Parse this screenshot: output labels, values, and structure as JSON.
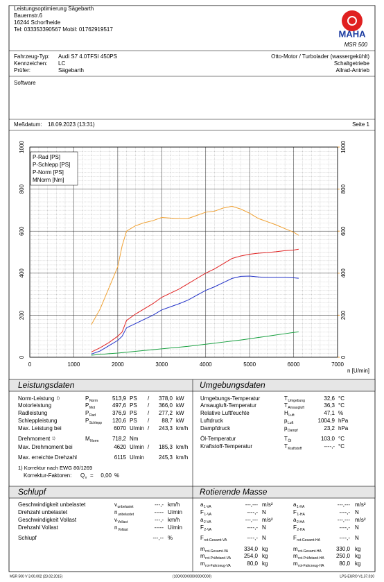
{
  "header": {
    "company": [
      "Leistungsoptimierung Sägebarth",
      "Bauernstr.6",
      "16244 Schorfheide",
      "Tel: 033353390567 Mobil: 01762919517"
    ],
    "logo_text": "MAHA",
    "model": "MSR 500"
  },
  "vehicle": {
    "rows": [
      {
        "label": "Fahrzeug-Typ:",
        "value": "Audi S7 4.0TFSI 450PS"
      },
      {
        "label": "Kennzeichen:",
        "value": "LC"
      },
      {
        "label": "Prüfer:",
        "value": "Sägebarth"
      }
    ],
    "right": [
      "Otto-Motor / Turbolader (wassergekühlt)",
      "Schaltgetriebe",
      "Allrad-Antrieb"
    ]
  },
  "software": {
    "label": "Software"
  },
  "date": {
    "label": "Meßdatum:",
    "value": "18.09.2023 (13:31)",
    "page": "Seite 1"
  },
  "chart_data": {
    "type": "line",
    "x_label": "n [U/min]",
    "x": [
      1400,
      1600,
      1800,
      2000,
      2100,
      2200,
      2400,
      2600,
      2800,
      3000,
      3200,
      3400,
      3600,
      3800,
      4000,
      4200,
      4400,
      4600,
      4800,
      5000,
      5200,
      5400,
      5600,
      5800,
      6000,
      6115
    ],
    "series": [
      {
        "name": "P-Rad [PS]",
        "color": "#2030c8",
        "values": [
          15,
          30,
          55,
          80,
          100,
          140,
          160,
          180,
          200,
          225,
          240,
          255,
          272,
          295,
          318,
          335,
          355,
          375,
          385,
          386,
          382,
          380,
          380,
          380,
          378,
          376
        ]
      },
      {
        "name": "P-Schlepp [PS]",
        "color": "#18a040",
        "values": [
          10,
          13,
          17,
          20,
          22,
          24,
          28,
          32,
          36,
          40,
          44,
          48,
          52,
          57,
          62,
          67,
          72,
          77,
          82,
          88,
          94,
          100,
          106,
          112,
          118,
          121
        ]
      },
      {
        "name": "P-Norm [PS]",
        "color": "#e02020",
        "values": [
          25,
          45,
          70,
          100,
          120,
          175,
          205,
          230,
          255,
          285,
          305,
          325,
          350,
          375,
          400,
          420,
          445,
          470,
          482,
          490,
          495,
          498,
          502,
          507,
          510,
          514
        ]
      },
      {
        "name": "MNorm [Nm]",
        "color": "#f0a030",
        "axis": "y2",
        "values": [
          155,
          230,
          330,
          430,
          530,
          600,
          625,
          640,
          650,
          665,
          662,
          660,
          660,
          675,
          690,
          695,
          710,
          718,
          705,
          685,
          660,
          645,
          630,
          612,
          595,
          580
        ]
      }
    ],
    "xlim": [
      0,
      7000
    ],
    "xticks": [
      0,
      1000,
      2000,
      3000,
      4000,
      5000,
      6000,
      7000
    ],
    "ylim": [
      0,
      1000
    ],
    "yticks": [
      0,
      200,
      400,
      600,
      800,
      1000
    ],
    "y2lim": [
      0,
      1000
    ],
    "y2ticks": [
      0,
      200,
      400,
      600,
      800,
      1000
    ],
    "y2color": "#f0a030",
    "grid": true,
    "legend": "top-left"
  },
  "power": {
    "title": "Leistungsdaten",
    "rows": [
      {
        "label": "Norm-Leistung",
        "note": "1)",
        "sym": "P",
        "sub": "Norm",
        "v1": "513,9",
        "u1": "PS",
        "sep": "/",
        "v2": "378,0",
        "u2": "kW",
        "color": "#e02020"
      },
      {
        "label": "Motorleistung",
        "sym": "P",
        "sub": "Mot",
        "v1": "497,6",
        "u1": "PS",
        "sep": "/",
        "v2": "366,0",
        "u2": "kW",
        "color": "#e02020"
      },
      {
        "label": "Radleistung",
        "sym": "P",
        "sub": "Rad",
        "v1": "376,9",
        "u1": "PS",
        "sep": "/",
        "v2": "277,2",
        "u2": "kW",
        "color": "#2030c8"
      },
      {
        "label": "Schleppleistung",
        "sym": "P",
        "sub": "Schlepp",
        "v1": "120,6",
        "u1": "PS",
        "sep": "/",
        "v2": "88,7",
        "u2": "kW",
        "color": "#18a040"
      },
      {
        "label": "Max. Leistung bei",
        "v1": "6070",
        "u1": "U/min",
        "sep": "/",
        "v2": "243,3",
        "u2": "km/h",
        "color": "#000000"
      },
      {
        "label": "Drehmoment",
        "note": "1)",
        "sym": "M",
        "sub": "Norm",
        "v1": "718,2",
        "u1": "Nm",
        "color": "#f0a030"
      },
      {
        "label": "Max. Drehmoment bei",
        "v1": "4620",
        "u1": "U/min",
        "sep": "/",
        "v2": "185,3",
        "u2": "km/h",
        "color": "#000000"
      },
      {
        "label": "Max. erreichte Drehzahl",
        "v1": "6115",
        "u1": "U/min",
        "v2": "245,3",
        "u2": "km/h",
        "color": "#000000"
      }
    ],
    "notes": [
      "1) Korrektur nach EWG 80/1269",
      "Korrektur-Faktoren:"
    ],
    "factor": {
      "sym": "Q",
      "sub": "v",
      "eq": "=",
      "value": "0,00",
      "unit": "%"
    }
  },
  "environment": {
    "title": "Umgebungsdaten",
    "rows": [
      {
        "label": "Umgebungs-Temperatur",
        "sym": "T",
        "sub": "Umgebung",
        "v": "32,6",
        "u": "°C"
      },
      {
        "label": "Ansaugluft-Temperatur",
        "sym": "T",
        "sub": "Ansaugluft",
        "v": "36,3",
        "u": "°C"
      },
      {
        "label": "Relative Luftfeuchte",
        "sym": "H",
        "sub": "Luft",
        "v": "47,1",
        "u": "%"
      },
      {
        "label": "Luftdruck",
        "sym": "p",
        "sub": "Luft",
        "v": "1004,9",
        "u": "hPa"
      },
      {
        "label": "Dampfdruck",
        "sym": "p",
        "sub": "Dampf",
        "v": "23,2",
        "u": "hPa"
      },
      {
        "label": "Öl-Temperatur",
        "sym": "T",
        "sub": "Öl",
        "v": "103,0",
        "u": "°C"
      },
      {
        "label": "Kraftstoff-Temperatur",
        "sym": "T",
        "sub": "Kraftstoff",
        "v": "----,-",
        "u": "°C"
      }
    ]
  },
  "slip": {
    "title": "Schlupf",
    "rows": [
      {
        "label": "Geschwindigkeit unbelastet",
        "sym": "v",
        "sub": "unbelastet",
        "v": "---,-",
        "u": "km/h"
      },
      {
        "label": "Drehzahl unbelastet",
        "sym": "n",
        "sub": "unbelastet",
        "v": "-----",
        "u": "U/min"
      },
      {
        "label": "Geschwindigkeit Vollast",
        "sym": "v",
        "sub": "Vollast",
        "v": "---,-",
        "u": "km/h"
      },
      {
        "label": "Drehzahl Vollast",
        "sym": "n",
        "sub": "Vollast",
        "v": "-----",
        "u": "U/min"
      },
      {
        "label": "Schlupf",
        "v": "---,--",
        "u": "%"
      }
    ]
  },
  "mass": {
    "title": "Rotierende Masse",
    "left": [
      {
        "sym": "a",
        "sub": "1-VA",
        "v": "---,---",
        "u": "m/s²"
      },
      {
        "sym": "F",
        "sub": "1-VA",
        "v": "----,-",
        "u": "N"
      },
      {
        "sym": "a",
        "sub": "2-VA",
        "v": "---,---",
        "u": "m/s²"
      },
      {
        "sym": "F",
        "sub": "2-VA",
        "v": "----,-",
        "u": "N"
      },
      {
        "sym": "F",
        "sub": "rot-Gesamt-VA",
        "v": "----,-",
        "u": "N"
      },
      {
        "sym": "m",
        "sub": "rot-Gesamt-VA",
        "v": "334,0",
        "u": "kg"
      },
      {
        "sym": "m",
        "sub": "rot-Prüfstand-VA",
        "v": "254,0",
        "u": "kg"
      },
      {
        "sym": "m",
        "sub": "rot-Fahrzeug-VA",
        "v": "80,0",
        "u": "kg"
      }
    ],
    "right": [
      {
        "sym": "a",
        "sub": "1-HA",
        "v": "---,---",
        "u": "m/s²"
      },
      {
        "sym": "F",
        "sub": "1-HA",
        "v": "----,-",
        "u": "N"
      },
      {
        "sym": "a",
        "sub": "2-HA",
        "v": "---,---",
        "u": "m/s²"
      },
      {
        "sym": "F",
        "sub": "2-HA",
        "v": "----,-",
        "u": "N"
      },
      {
        "sym": "F",
        "sub": "rot-Gesamt-HA",
        "v": "----,-",
        "u": "N"
      },
      {
        "sym": "m",
        "sub": "rot-Gesamt-HA",
        "v": "330,0",
        "u": "kg"
      },
      {
        "sym": "m",
        "sub": "rot-Prüfstand-HA",
        "v": "250,0",
        "u": "kg"
      },
      {
        "sym": "m",
        "sub": "rot-Fahrzeug-HA",
        "v": "80,0",
        "u": "kg"
      }
    ]
  },
  "footer": {
    "left": "MSR 500 V 3.00.002 (23.02.2015)",
    "center": "(100/000/0000/000/0000)",
    "right": "LPS-EURO V1.37.010"
  }
}
